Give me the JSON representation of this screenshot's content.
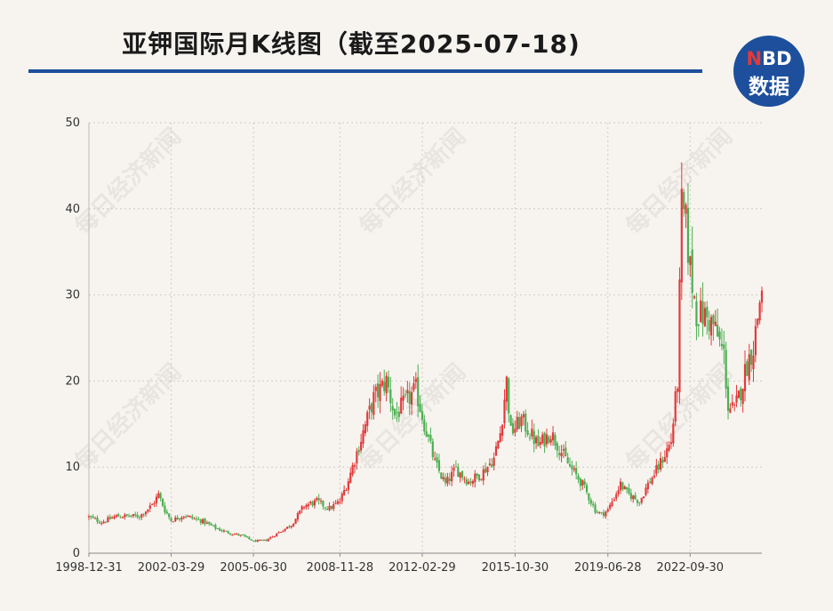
{
  "title": "亚钾国际月K线图（截至2025-07-18)",
  "logo": {
    "top": "NBD",
    "bottom": "数据"
  },
  "watermark": "每日经济新闻",
  "colors": {
    "up": "#e03b3b",
    "down": "#4caf50",
    "brand": "#1d4f9c",
    "grid": "#cfcac4"
  },
  "chart_data": {
    "type": "candlestick",
    "title": "亚钾国际月K线图（截至2025-07-18)",
    "ylim": [
      0,
      50
    ],
    "yticks": [
      "0",
      "10",
      "20",
      "30",
      "40",
      "50"
    ],
    "xtick_labels": [
      "1998-12-31",
      "2002-03-29",
      "2005-06-30",
      "2008-11-28",
      "2012-02-29",
      "2015-10-30",
      "2019-06-28",
      "2022-09-30"
    ],
    "xlim": [
      "1998-12-31",
      "2025-07-18"
    ],
    "grid": true,
    "anchors": [
      [
        "1998-12",
        4.2
      ],
      [
        "1999-06",
        3.6
      ],
      [
        "2000-01",
        4.3
      ],
      [
        "2000-12",
        4.3
      ],
      [
        "2001-06",
        5.6
      ],
      [
        "2001-09",
        6.8
      ],
      [
        "2001-12",
        5.0
      ],
      [
        "2002-03",
        3.8
      ],
      [
        "2002-09",
        4.4
      ],
      [
        "2003-06",
        3.7
      ],
      [
        "2004-01",
        2.8
      ],
      [
        "2004-06",
        2.4
      ],
      [
        "2005-01",
        2.0
      ],
      [
        "2005-06",
        1.4
      ],
      [
        "2005-12",
        1.5
      ],
      [
        "2006-06",
        2.4
      ],
      [
        "2006-12",
        3.3
      ],
      [
        "2007-06",
        5.5
      ],
      [
        "2007-12",
        6.0
      ],
      [
        "2008-06",
        5.2
      ],
      [
        "2008-11",
        6.0
      ],
      [
        "2009-03",
        8.5
      ],
      [
        "2009-08",
        12.5
      ],
      [
        "2010-03",
        18.0
      ],
      [
        "2010-09",
        20.0
      ],
      [
        "2011-01",
        16.0
      ],
      [
        "2011-06",
        17.5
      ],
      [
        "2011-11",
        19.0
      ],
      [
        "2012-03",
        15.0
      ],
      [
        "2012-08",
        10.5
      ],
      [
        "2013-01",
        8.0
      ],
      [
        "2013-06",
        9.8
      ],
      [
        "2013-12",
        8.3
      ],
      [
        "2014-06",
        9.2
      ],
      [
        "2014-12",
        11.0
      ],
      [
        "2015-03",
        14.0
      ],
      [
        "2015-06",
        20.0
      ],
      [
        "2015-08",
        14.0
      ],
      [
        "2016-01",
        15.5
      ],
      [
        "2016-09",
        12.5
      ],
      [
        "2017-03",
        14.0
      ],
      [
        "2017-12",
        10.0
      ],
      [
        "2018-06",
        8.0
      ],
      [
        "2018-12",
        5.0
      ],
      [
        "2019-03",
        4.5
      ],
      [
        "2019-06",
        5.0
      ],
      [
        "2019-12",
        8.0
      ],
      [
        "2020-03",
        7.0
      ],
      [
        "2020-09",
        6.0
      ],
      [
        "2021-01",
        8.0
      ],
      [
        "2021-06",
        10.0
      ],
      [
        "2021-12",
        13.0
      ],
      [
        "2022-03",
        20.0
      ],
      [
        "2022-05",
        40.0
      ],
      [
        "2022-07",
        38.0
      ],
      [
        "2022-09",
        33.0
      ],
      [
        "2022-12",
        28.0
      ],
      [
        "2023-04",
        27.5
      ],
      [
        "2023-08",
        26.5
      ],
      [
        "2024-01",
        23.0
      ],
      [
        "2024-03",
        17.0
      ],
      [
        "2024-06",
        16.5
      ],
      [
        "2024-09",
        19.0
      ],
      [
        "2024-12",
        22.0
      ],
      [
        "2025-03",
        24.0
      ],
      [
        "2025-07",
        31.0
      ]
    ]
  }
}
